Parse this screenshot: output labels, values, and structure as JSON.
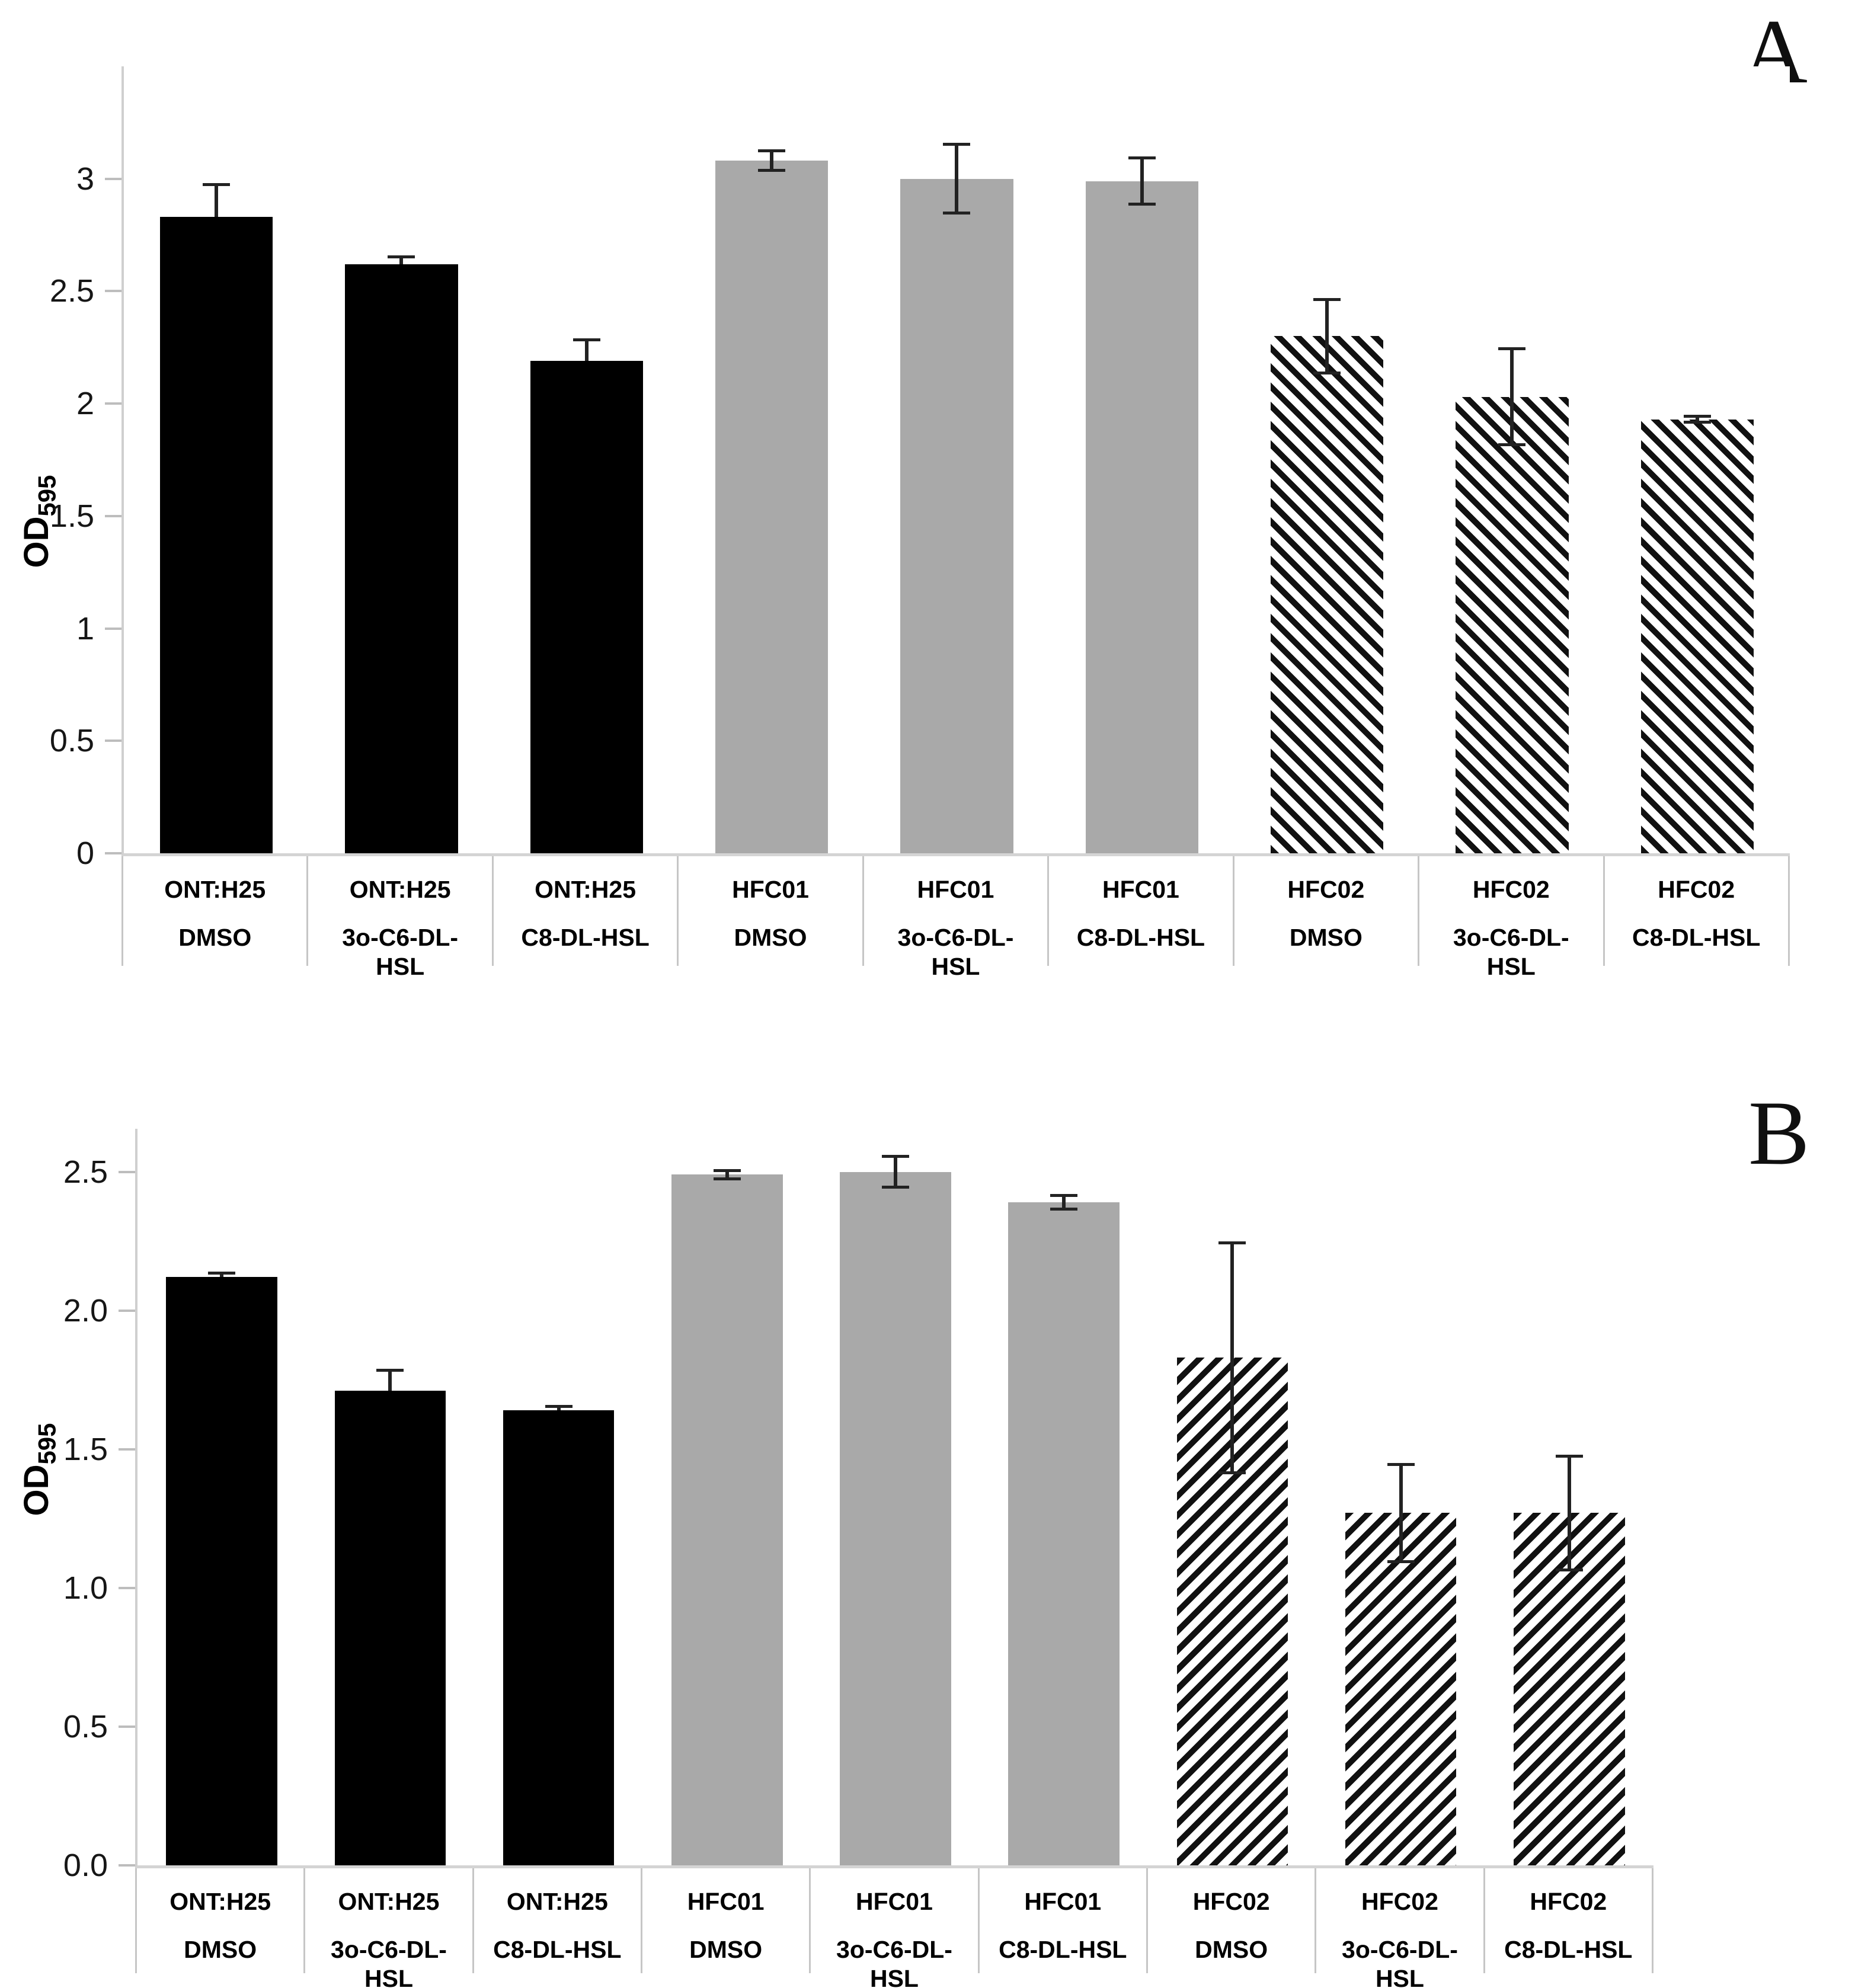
{
  "chart_data": [
    {
      "type": "bar",
      "panel_label": "A",
      "ylabel_main": "OD",
      "ylabel_sub": "595",
      "xlabel": "",
      "ylim": [
        0,
        3.5
      ],
      "grid": false,
      "legend": "none",
      "yticks": [
        {
          "label": "3",
          "value": 3
        },
        {
          "label": "2.5",
          "value": 2.5
        },
        {
          "label": "2",
          "value": 2
        },
        {
          "label": "1.5",
          "value": 1.5
        },
        {
          "label": "1",
          "value": 1
        },
        {
          "label": "0.5",
          "value": 0.5
        },
        {
          "label": "0",
          "value": 0
        }
      ],
      "hatch_direction": "down-right",
      "bars": [
        {
          "strain": "ONT:H25",
          "treatment": "DMSO",
          "style": "black",
          "value": 2.83,
          "err_up": 0.15,
          "err_down": 0
        },
        {
          "strain": "ONT:H25",
          "treatment": "3o-C6-DL-HSL",
          "style": "black",
          "value": 2.62,
          "err_up": 0.04,
          "err_down": 0
        },
        {
          "strain": "ONT:H25",
          "treatment": "C8-DL-HSL",
          "style": "black",
          "value": 2.19,
          "err_up": 0.1,
          "err_down": 0
        },
        {
          "strain": "HFC01",
          "treatment": "DMSO",
          "style": "gray",
          "value": 3.08,
          "err_up": 0.05,
          "err_down": 0.05
        },
        {
          "strain": "HFC01",
          "treatment": "3o-C6-DL-HSL",
          "style": "gray",
          "value": 3.0,
          "err_up": 0.16,
          "err_down": 0.16
        },
        {
          "strain": "HFC01",
          "treatment": "C8-DL-HSL",
          "style": "gray",
          "value": 2.99,
          "err_up": 0.11,
          "err_down": 0.11
        },
        {
          "strain": "HFC02",
          "treatment": "DMSO",
          "style": "hatch",
          "value": 2.3,
          "err_up": 0.17,
          "err_down": 0.17
        },
        {
          "strain": "HFC02",
          "treatment": "3o-C6-DL-HSL",
          "style": "hatch",
          "value": 2.03,
          "err_up": 0.22,
          "err_down": 0.22
        },
        {
          "strain": "HFC02",
          "treatment": "C8-DL-HSL",
          "style": "hatch",
          "value": 1.93,
          "err_up": 0.02,
          "err_down": 0.02
        }
      ]
    },
    {
      "type": "bar",
      "panel_label": "B",
      "ylabel_main": "OD",
      "ylabel_sub": "595",
      "xlabel": "",
      "ylim": [
        0,
        2.655
      ],
      "grid": false,
      "legend": "none",
      "yticks": [
        {
          "label": "2.5",
          "value": 2.5
        },
        {
          "label": "2.0",
          "value": 2
        },
        {
          "label": "1.5",
          "value": 1.5
        },
        {
          "label": "1.0",
          "value": 1
        },
        {
          "label": "0.5",
          "value": 0.5
        },
        {
          "label": "0.0",
          "value": 0
        }
      ],
      "hatch_direction": "up-right",
      "bars": [
        {
          "strain": "ONT:H25",
          "treatment": "DMSO",
          "style": "black",
          "value": 2.12,
          "err_up": 0.02,
          "err_down": 0
        },
        {
          "strain": "ONT:H25",
          "treatment": "3o-C6-DL-HSL",
          "style": "black",
          "value": 1.71,
          "err_up": 0.08,
          "err_down": 0
        },
        {
          "strain": "ONT:H25",
          "treatment": "C8-DL-HSL",
          "style": "black",
          "value": 1.64,
          "err_up": 0.02,
          "err_down": 0
        },
        {
          "strain": "HFC01",
          "treatment": "DMSO",
          "style": "gray",
          "value": 2.49,
          "err_up": 0.02,
          "err_down": 0.02
        },
        {
          "strain": "HFC01",
          "treatment": "3o-C6-DL-HSL",
          "style": "gray",
          "value": 2.5,
          "err_up": 0.06,
          "err_down": 0.06
        },
        {
          "strain": "HFC01",
          "treatment": "C8-DL-HSL",
          "style": "gray",
          "value": 2.39,
          "err_up": 0.03,
          "err_down": 0.03
        },
        {
          "strain": "HFC02",
          "treatment": "DMSO",
          "style": "hatch",
          "value": 1.83,
          "err_up": 0.42,
          "err_down": 0.42
        },
        {
          "strain": "HFC02",
          "treatment": "3o-C6-DL-HSL",
          "style": "hatch",
          "value": 1.27,
          "err_up": 0.18,
          "err_down": 0.18
        },
        {
          "strain": "HFC02",
          "treatment": "C8-DL-HSL",
          "style": "hatch",
          "value": 1.27,
          "err_up": 0.21,
          "err_down": 0.21
        }
      ]
    }
  ],
  "colors": {
    "black_bar": "#000000",
    "gray_bar": "#a9a9a9",
    "axis_line": "#d4d4d4",
    "error_bar": "#222222",
    "cell_border": "#c6c6c6"
  }
}
